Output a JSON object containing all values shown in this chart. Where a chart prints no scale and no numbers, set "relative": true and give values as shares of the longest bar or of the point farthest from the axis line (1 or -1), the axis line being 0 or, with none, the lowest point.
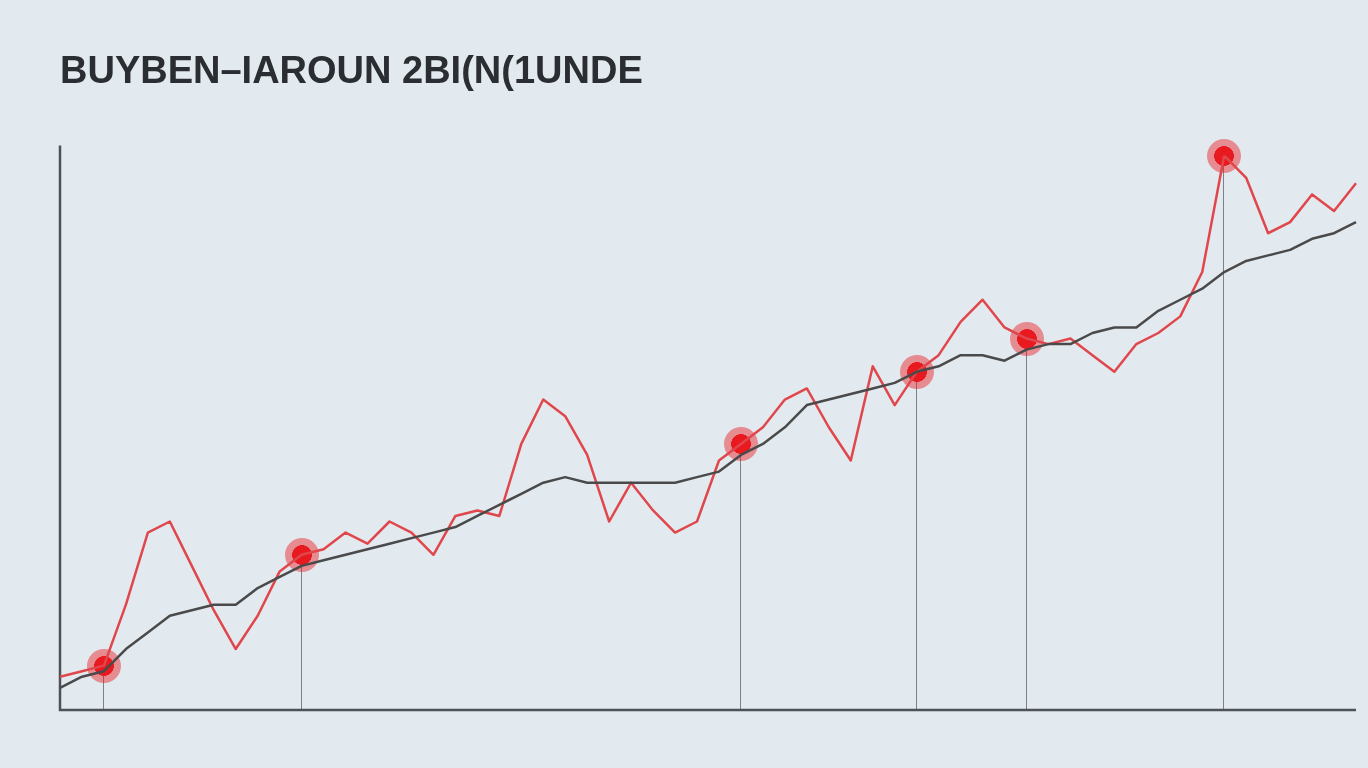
{
  "chart_data": {
    "type": "line",
    "title": "BUYBEN–IAROUN 2BI(N(1UNDE",
    "relative": true,
    "legend": false,
    "grid": false,
    "marker": "none",
    "line_style": "solid",
    "categories": [
      null,
      null,
      null,
      null,
      null,
      null,
      null,
      null,
      null,
      null,
      null,
      null,
      null,
      null,
      null,
      null,
      null,
      null,
      null,
      null,
      null,
      null,
      null,
      null,
      null,
      null,
      null,
      null,
      null,
      null,
      null,
      null,
      null,
      null,
      null,
      null,
      null,
      null,
      null,
      null,
      null,
      null,
      null,
      null,
      null,
      null,
      null,
      null,
      null,
      null,
      null,
      null,
      null,
      null,
      null,
      null,
      null,
      null,
      null,
      null
    ],
    "series": [
      {
        "color": "#4a4a4a",
        "values": [
          0.04,
          0.06,
          0.07,
          0.11,
          0.14,
          0.17,
          0.18,
          0.19,
          0.19,
          0.22,
          0.24,
          0.26,
          0.27,
          0.28,
          0.29,
          0.3,
          0.31,
          0.32,
          0.33,
          0.35,
          0.37,
          0.39,
          0.41,
          0.42,
          0.41,
          0.41,
          0.41,
          0.41,
          0.41,
          0.42,
          0.43,
          0.46,
          0.48,
          0.51,
          0.55,
          0.56,
          0.57,
          0.58,
          0.59,
          0.61,
          0.62,
          0.64,
          0.64,
          0.63,
          0.65,
          0.66,
          0.66,
          0.68,
          0.69,
          0.69,
          0.72,
          0.74,
          0.76,
          0.79,
          0.81,
          0.82,
          0.83,
          0.85,
          0.86,
          0.88
        ]
      },
      {
        "color": "#e0474c",
        "values": [
          0.06,
          0.07,
          0.08,
          0.19,
          0.32,
          0.34,
          0.26,
          0.18,
          0.11,
          0.17,
          0.25,
          0.28,
          0.29,
          0.32,
          0.3,
          0.34,
          0.32,
          0.28,
          0.35,
          0.36,
          0.35,
          0.48,
          0.56,
          0.53,
          0.46,
          0.34,
          0.41,
          0.36,
          0.32,
          0.34,
          0.45,
          0.48,
          0.51,
          0.56,
          0.58,
          0.51,
          0.45,
          0.62,
          0.55,
          0.61,
          0.64,
          0.7,
          0.74,
          0.69,
          0.67,
          0.66,
          0.67,
          0.64,
          0.61,
          0.66,
          0.68,
          0.71,
          0.79,
          1,
          0.96,
          0.86,
          0.88,
          0.93,
          0.9,
          0.95
        ]
      }
    ]
  }
}
